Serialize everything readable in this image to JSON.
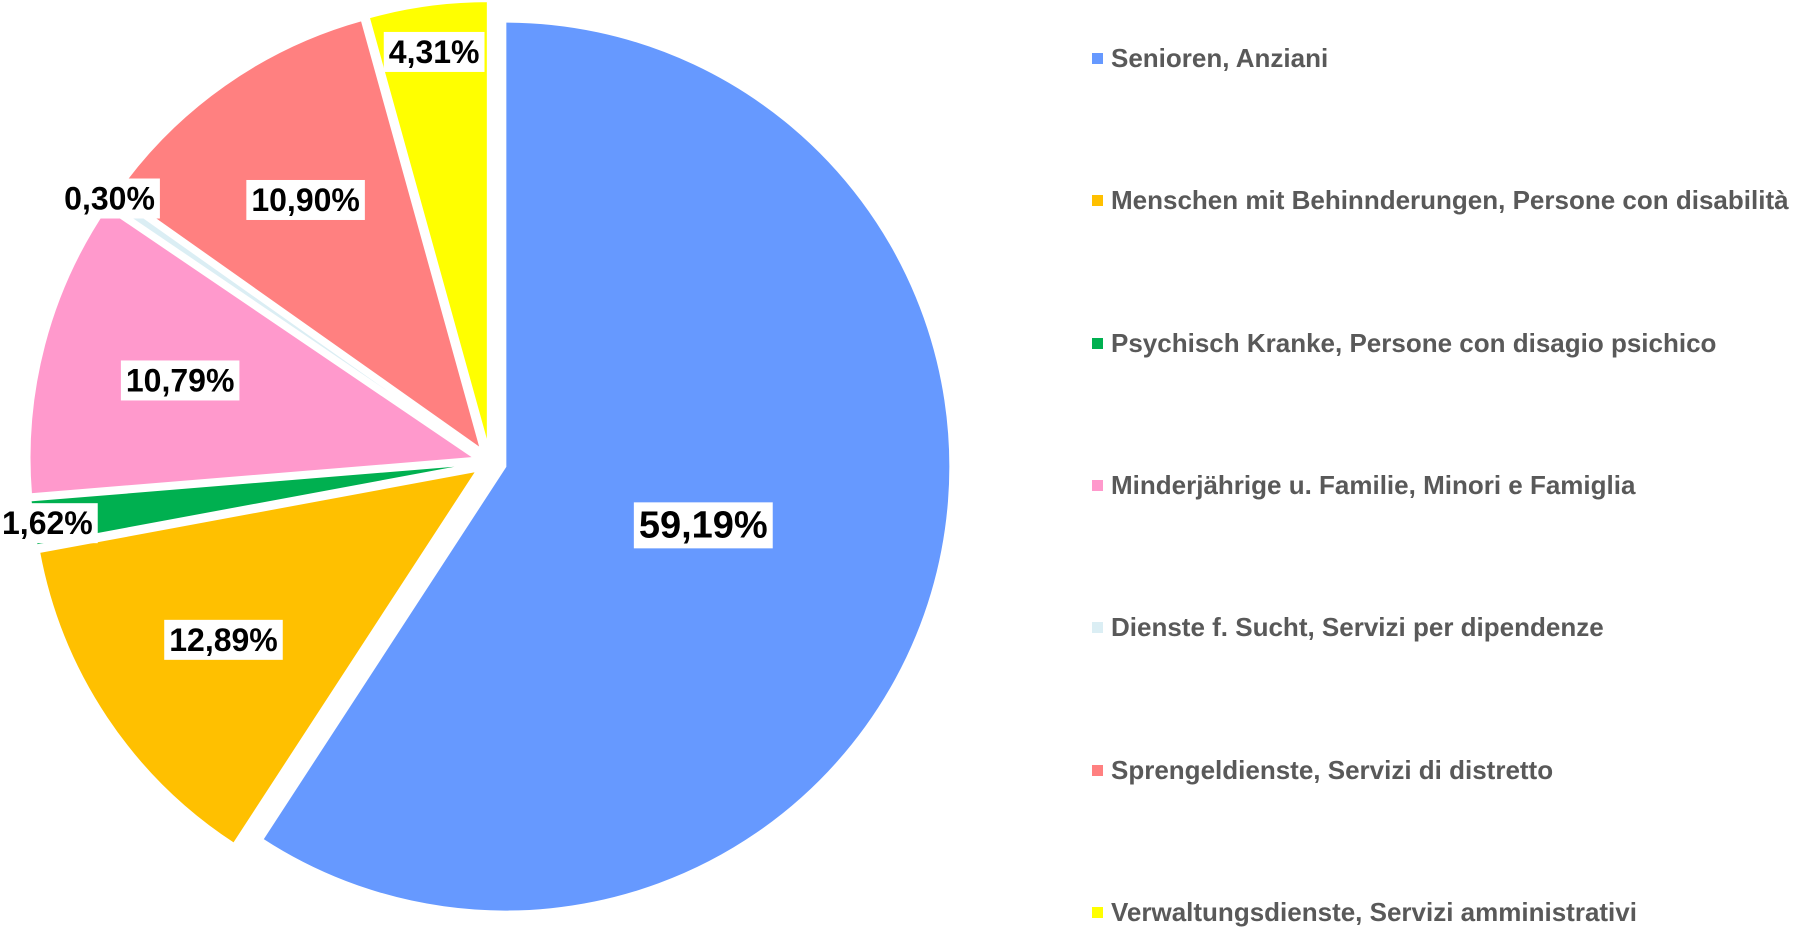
{
  "chart_data": {
    "type": "pie",
    "categories": [
      "Senioren, Anziani",
      "Menschen mit Behinnderungen, Persone con disabilità",
      "Psychisch Kranke, Persone con disagio psichico",
      "Minderjährige u. Familie, Minori e Famiglia",
      "Dienste f. Sucht, Servizi per dipendenze",
      "Sprengeldienste, Servizi di distretto",
      "Verwaltungsdienste, Servizi amministrativi"
    ],
    "values": [
      59.19,
      12.89,
      1.62,
      10.79,
      0.3,
      10.9,
      4.31
    ],
    "value_labels": [
      "59,19%",
      "12,89%",
      "1,62%",
      "10,79%",
      "0,30%",
      "10,90%",
      "4,31%"
    ],
    "colors": [
      "#6699ff",
      "#ffc000",
      "#00b050",
      "#ff99cc",
      "#dbeef4",
      "#ff8080",
      "#ffff00"
    ],
    "legend": "right"
  }
}
